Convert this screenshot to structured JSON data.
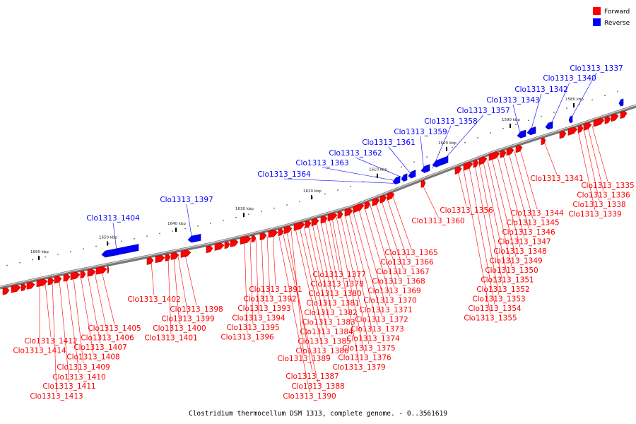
{
  "caption": "Clostridium thermocellum DSM 1313, complete genome. - 0..3561619",
  "legend": [
    {
      "label": "Forward",
      "color": "#ff0000"
    },
    {
      "label": "Reverse",
      "color": "#0000ff"
    }
  ],
  "scale_ticks": [
    {
      "label": "1580 kbp",
      "pos_kbp": 1580
    },
    {
      "label": "1590 kbp",
      "pos_kbp": 1590
    },
    {
      "label": "1600 kbp",
      "pos_kbp": 1600
    },
    {
      "label": "1610 kbp",
      "pos_kbp": 1610
    },
    {
      "label": "1620 kbp",
      "pos_kbp": 1620
    },
    {
      "label": "1630 kbp",
      "pos_kbp": 1630
    },
    {
      "label": "1640 kbp",
      "pos_kbp": 1640
    },
    {
      "label": "1650 kbp",
      "pos_kbp": 1650
    },
    {
      "label": "1660 kbp",
      "pos_kbp": 1660
    }
  ],
  "genes_reverse": [
    "Clo1313_1337",
    "Clo1313_1340",
    "Clo1313_1342",
    "Clo1313_1343",
    "Clo1313_1357",
    "Clo1313_1358",
    "Clo1313_1359",
    "Clo1313_1361",
    "Clo1313_1362",
    "Clo1313_1363",
    "Clo1313_1364",
    "Clo1313_1397",
    "Clo1313_1404"
  ],
  "genes_forward": [
    "Clo1313_1335",
    "Clo1313_1336",
    "Clo1313_1338",
    "Clo1313_1339",
    "Clo1313_1341",
    "Clo1313_1344",
    "Clo1313_1345",
    "Clo1313_1346",
    "Clo1313_1347",
    "Clo1313_1348",
    "Clo1313_1349",
    "Clo1313_1350",
    "Clo1313_1351",
    "Clo1313_1352",
    "Clo1313_1353",
    "Clo1313_1354",
    "Clo1313_1355",
    "Clo1313_1356",
    "Clo1313_1360",
    "Clo1313_1365",
    "Clo1313_1366",
    "Clo1313_1367",
    "Clo1313_1368",
    "Clo1313_1369",
    "Clo1313_1370",
    "Clo1313_1371",
    "Clo1313_1372",
    "Clo1313_1373",
    "Clo1313_1374",
    "Clo1313_1375",
    "Clo1313_1376",
    "Clo1313_1377",
    "Clo1313_1378",
    "Clo1313_1379",
    "Clo1313_1380",
    "Clo1313_1381",
    "Clo1313_1382",
    "Clo1313_1383",
    "Clo1313_1384",
    "Clo1313_1385",
    "Clo1313_1386",
    "Clo1313_1387",
    "Clo1313_1388",
    "Clo1313_1389",
    "Clo1313_1390",
    "Clo1313_1391",
    "Clo1313_1392",
    "Clo1313_1393",
    "Clo1313_1394",
    "Clo1313_1395",
    "Clo1313_1396",
    "Clo1313_1398",
    "Clo1313_1399",
    "Clo1313_1400",
    "Clo1313_1401",
    "Clo1313_1402",
    "Clo1313_1405",
    "Clo1313_1406",
    "Clo1313_1407",
    "Clo1313_1408",
    "Clo1313_1409",
    "Clo1313_1410",
    "Clo1313_1411",
    "Clo1313_1412",
    "Clo1313_1413",
    "Clo1313_1414"
  ]
}
